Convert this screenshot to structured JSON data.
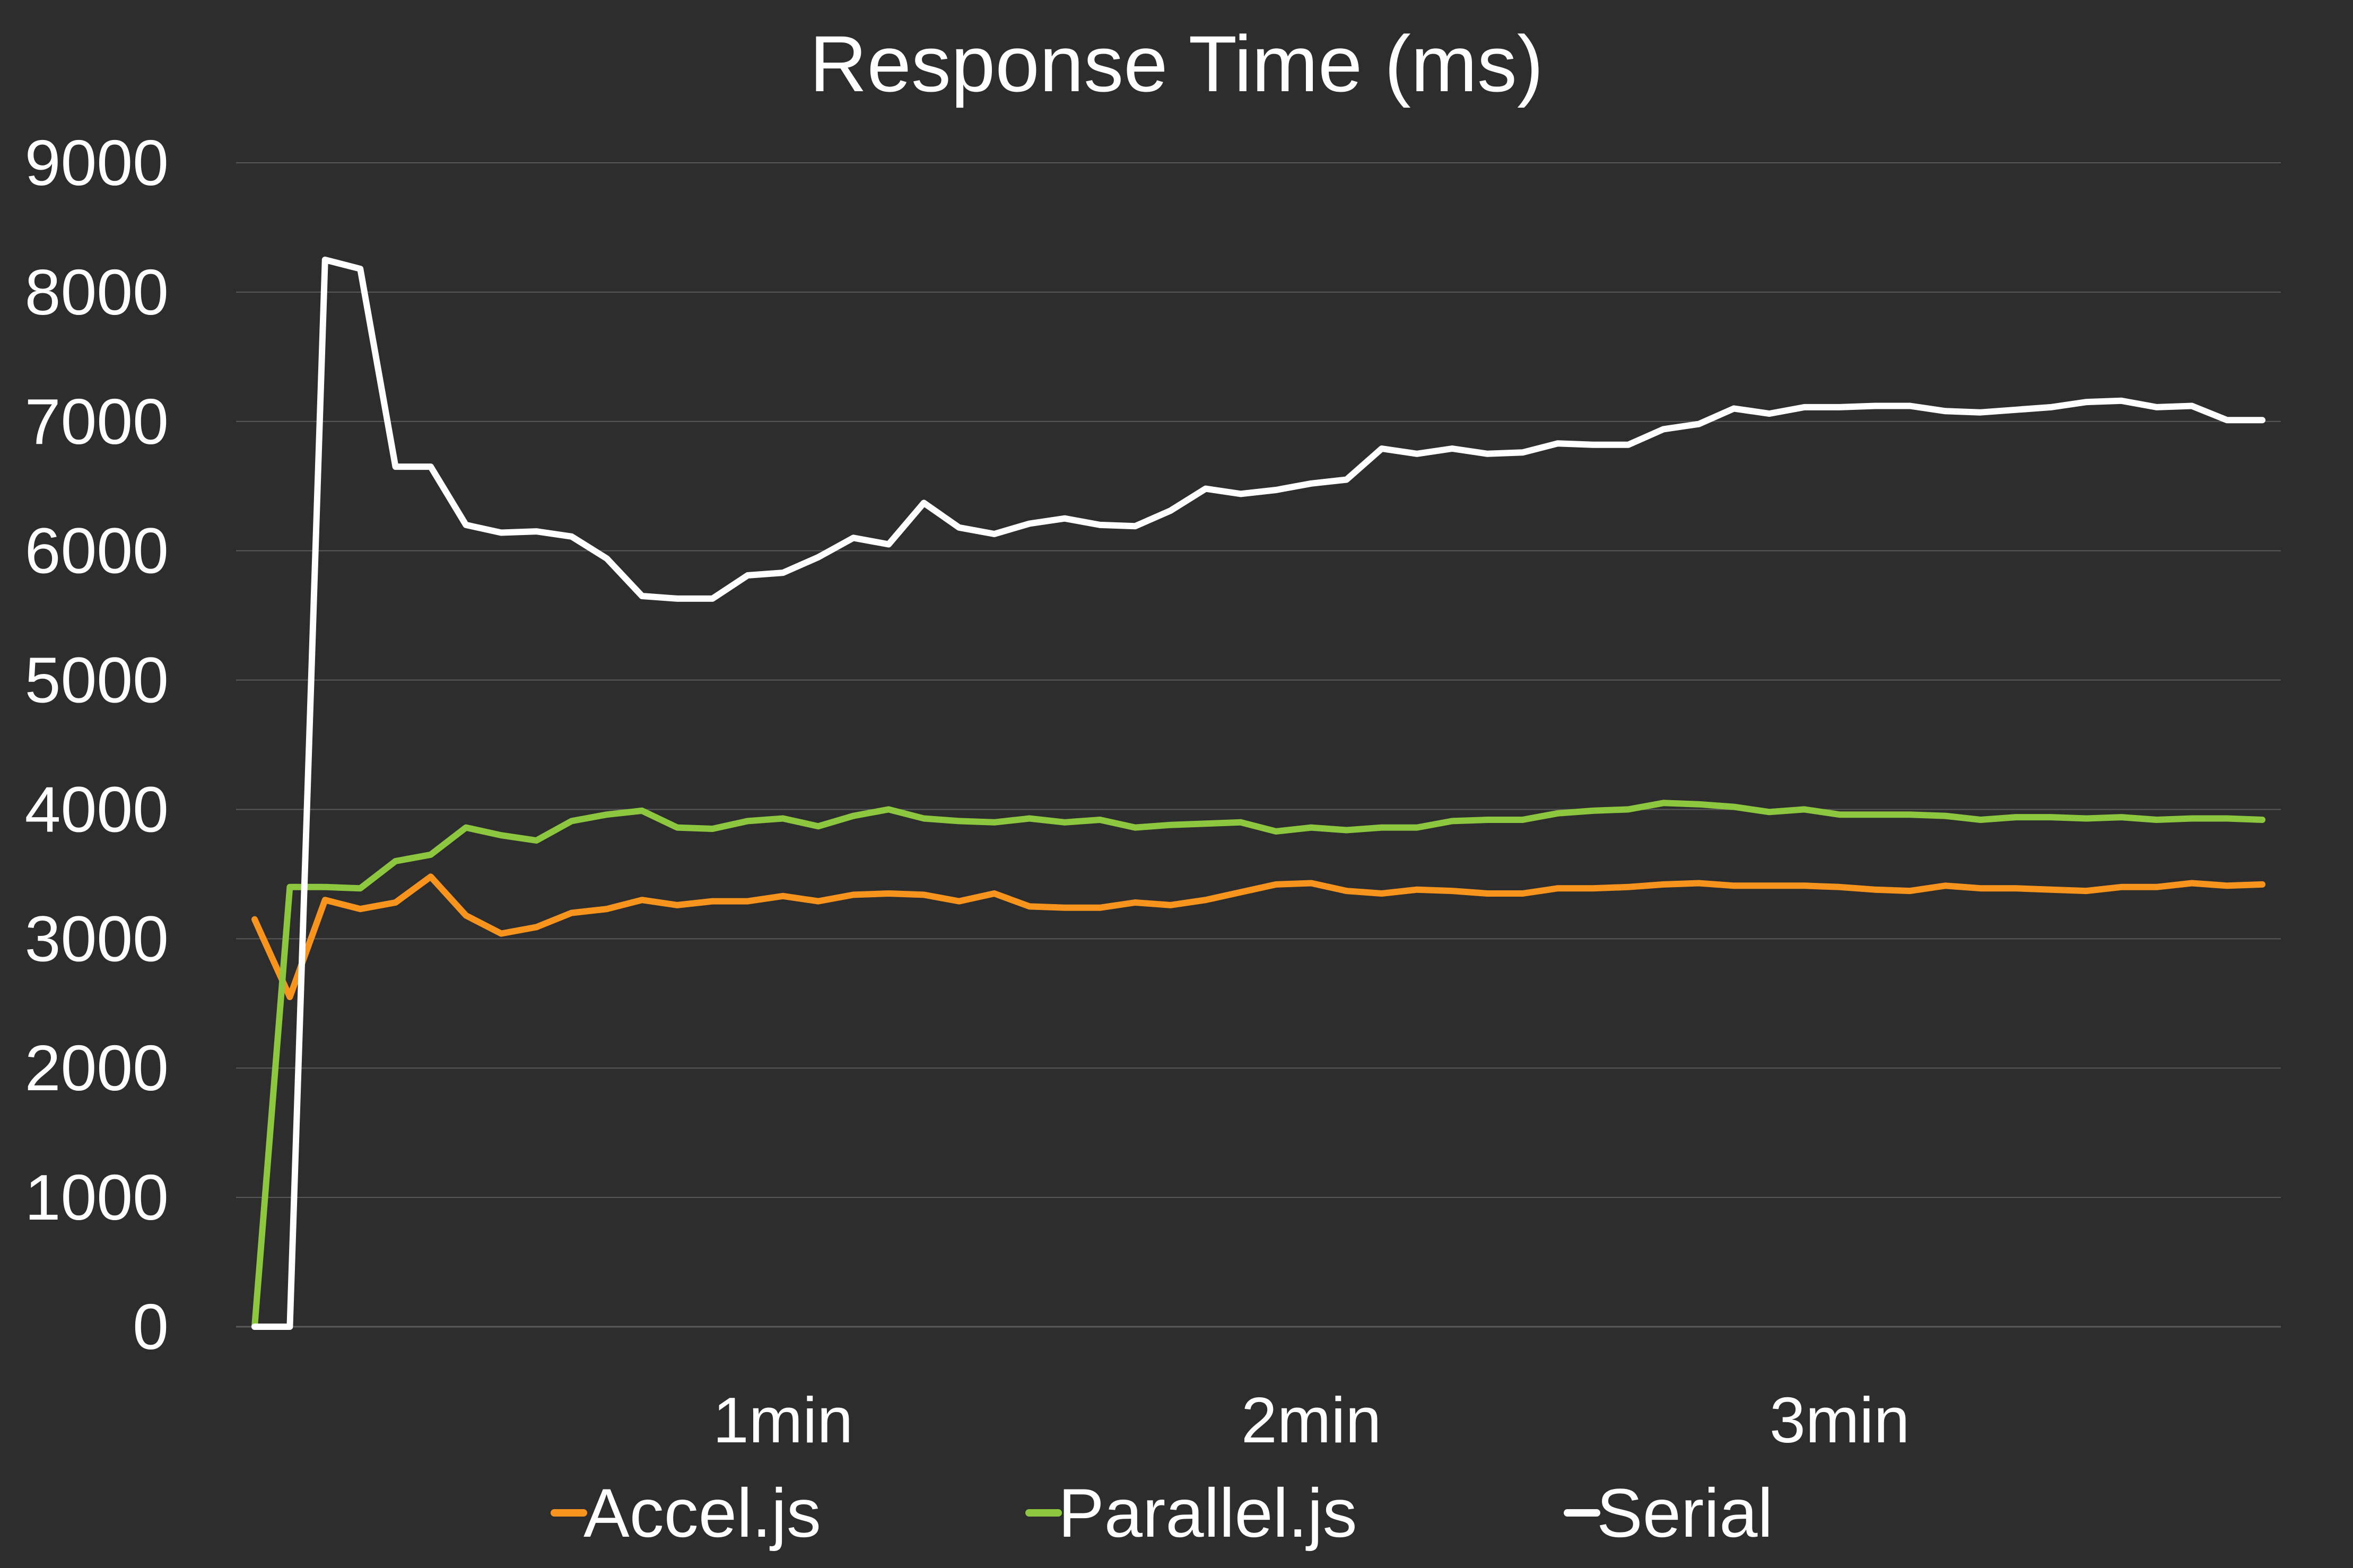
{
  "chart_data": {
    "type": "line",
    "title": "Response Time (ms)",
    "xlabel": "",
    "ylabel": "",
    "ylim": [
      0,
      9000
    ],
    "yticks": [
      0,
      1000,
      2000,
      3000,
      4000,
      5000,
      6000,
      7000,
      8000,
      9000
    ],
    "x_tick_labels": [
      {
        "label": "1min",
        "x": 15
      },
      {
        "label": "2min",
        "x": 30
      },
      {
        "label": "3min",
        "x": 45
      }
    ],
    "grid": true,
    "legend_position": "bottom",
    "colors": {
      "background": "#2d2d2d",
      "grid": "#5a5a5a",
      "Accel.js": "#f7941d",
      "Parallel.js": "#8dc63f",
      "Serial": "#ffffff"
    },
    "x": [
      0,
      1,
      2,
      3,
      4,
      5,
      6,
      7,
      8,
      9,
      10,
      11,
      12,
      13,
      14,
      15,
      16,
      17,
      18,
      19,
      20,
      21,
      22,
      23,
      24,
      25,
      26,
      27,
      28,
      29,
      30,
      31,
      32,
      33,
      34,
      35,
      36,
      37,
      38,
      39,
      40,
      41,
      42,
      43,
      44,
      45,
      46,
      47,
      48,
      49,
      50,
      51,
      52,
      53,
      54,
      55,
      56,
      57
    ],
    "series": [
      {
        "name": "Accel.js",
        "values": [
          3150,
          2550,
          3300,
          3230,
          3280,
          3480,
          3180,
          3040,
          3090,
          3200,
          3230,
          3300,
          3260,
          3290,
          3290,
          3330,
          3290,
          3340,
          3350,
          3340,
          3290,
          3350,
          3250,
          3240,
          3240,
          3280,
          3260,
          3300,
          3360,
          3420,
          3430,
          3370,
          3350,
          3380,
          3370,
          3350,
          3350,
          3390,
          3390,
          3400,
          3420,
          3430,
          3410,
          3410,
          3410,
          3400,
          3380,
          3370,
          3410,
          3390,
          3390,
          3380,
          3370,
          3400,
          3400,
          3430,
          3410,
          3420
        ]
      },
      {
        "name": "Parallel.js",
        "values": [
          0,
          3400,
          3400,
          3390,
          3600,
          3650,
          3860,
          3800,
          3760,
          3910,
          3960,
          3990,
          3860,
          3850,
          3910,
          3930,
          3870,
          3950,
          4000,
          3930,
          3910,
          3900,
          3930,
          3900,
          3920,
          3860,
          3880,
          3890,
          3900,
          3830,
          3860,
          3840,
          3860,
          3860,
          3910,
          3920,
          3920,
          3970,
          3990,
          4000,
          4050,
          4040,
          4020,
          3980,
          4000,
          3960,
          3960,
          3960,
          3950,
          3920,
          3940,
          3940,
          3930,
          3940,
          3920,
          3930,
          3930,
          3920
        ]
      },
      {
        "name": "Serial",
        "values": [
          0,
          0,
          8250,
          8180,
          6650,
          6650,
          6200,
          6140,
          6150,
          6110,
          5940,
          5650,
          5630,
          5630,
          5810,
          5830,
          5950,
          6100,
          6050,
          6370,
          6180,
          6130,
          6210,
          6250,
          6200,
          6190,
          6310,
          6480,
          6440,
          6470,
          6520,
          6550,
          6790,
          6750,
          6790,
          6750,
          6760,
          6830,
          6820,
          6820,
          6940,
          6980,
          7100,
          7060,
          7110,
          7110,
          7120,
          7120,
          7080,
          7070,
          7090,
          7110,
          7150,
          7160,
          7110,
          7120,
          7010,
          7010
        ]
      }
    ]
  }
}
